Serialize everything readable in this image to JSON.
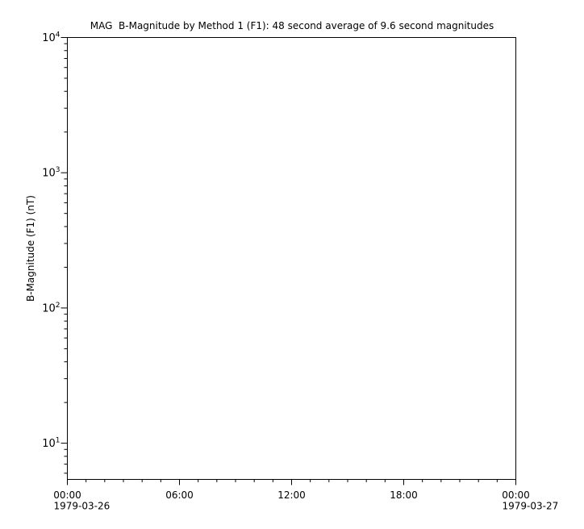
{
  "chart_data": {
    "type": "line",
    "title": "MAG  B-Magnitude by Method 1 (F1): 48 second average of 9.6 second magnitudes",
    "xlabel": "",
    "ylabel": "B-Magnitude (F1) (nT)",
    "grid": false,
    "frame": "box",
    "background": "#ffffff",
    "axis_color": "#000000",
    "text_color": "#000000",
    "series": [],
    "x_axis": {
      "unit": "time",
      "start": "1979-03-26 00:00",
      "end": "1979-03-27 00:00",
      "range_hours": [
        0,
        24
      ],
      "minor_tick_every_hours": 1,
      "major_ticks": [
        {
          "hour": 0,
          "label": "00:00",
          "date": "1979-03-26"
        },
        {
          "hour": 6,
          "label": "06:00"
        },
        {
          "hour": 12,
          "label": "12:00"
        },
        {
          "hour": 18,
          "label": "18:00"
        },
        {
          "hour": 24,
          "label": "00:00",
          "date": "1979-03-27"
        }
      ]
    },
    "y_axis": {
      "scale": "log",
      "ylim": [
        5.4,
        10000
      ],
      "major_tick_values": [
        10,
        100,
        1000,
        10000
      ],
      "major_tick_labels": [
        "10^1",
        "10^2",
        "10^3",
        "10^4"
      ],
      "minor_ticks": "2-9 per decade"
    }
  }
}
